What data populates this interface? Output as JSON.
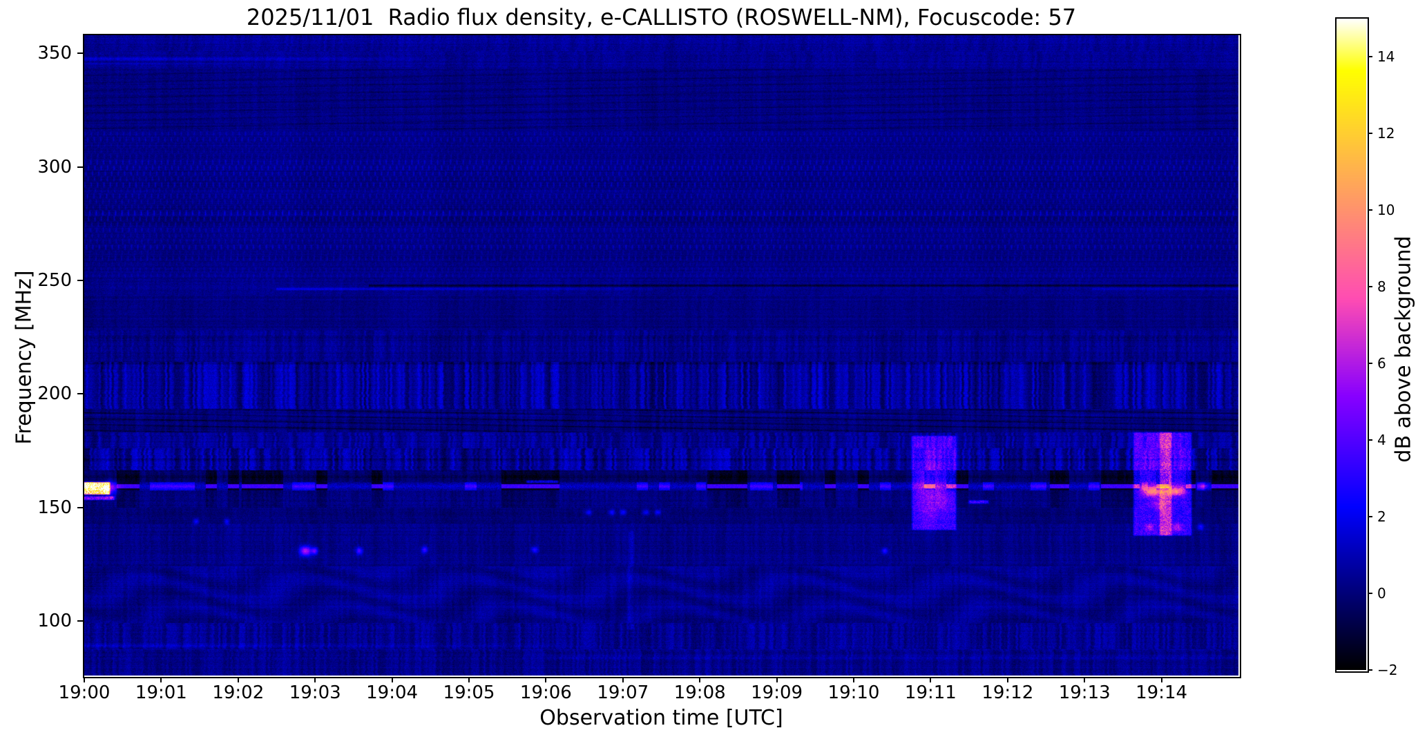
{
  "figure": {
    "title": "2025/11/01  Radio flux density, e-CALLISTO (ROSWELL-NM), Focuscode: 57"
  },
  "chart_data": {
    "type": "heatmap",
    "title": "2025/11/01  Radio flux density, e-CALLISTO (ROSWELL-NM), Focuscode: 57",
    "xlabel": "Observation time [UTC]",
    "ylabel": "Frequency [MHz]",
    "instrument": "e-CALLISTO (ROSWELL-NM)",
    "date": "2025/11/01",
    "focuscode": "57",
    "x_start_utc": "19:00",
    "x_end_utc": "19:15",
    "duration_minutes": 15,
    "x_tick_labels": [
      "19:00",
      "19:01",
      "19:02",
      "19:03",
      "19:04",
      "19:05",
      "19:06",
      "19:07",
      "19:08",
      "19:09",
      "19:10",
      "19:11",
      "19:12",
      "19:13",
      "19:14"
    ],
    "x_tick_minutes": [
      0,
      1,
      2,
      3,
      4,
      5,
      6,
      7,
      8,
      9,
      10,
      11,
      12,
      13,
      14
    ],
    "y_tick_labels": [
      "350",
      "300",
      "250",
      "200",
      "150",
      "100"
    ],
    "y_tick_mhz": [
      350,
      300,
      250,
      200,
      150,
      100
    ],
    "freq_top_mhz": 358,
    "freq_bottom_mhz": 76,
    "grid": false,
    "colorbar": {
      "label": "dB above background",
      "colormap": "gnuplot2",
      "vmin": -2,
      "vmax": 15,
      "tick_values": [
        14,
        12,
        10,
        8,
        6,
        4,
        2,
        0,
        -2
      ],
      "tick_labels": [
        "14",
        "12",
        "10",
        "8",
        "6",
        "4",
        "2",
        "0",
        "−2"
      ]
    },
    "texture_bands": [
      {
        "lo": 351,
        "hi": 358.5,
        "base": 0.5,
        "noise": 0.45,
        "stripe": 0.3,
        "p": 4
      },
      {
        "lo": 343,
        "hi": 351,
        "base": 0.45,
        "noise": 0.45,
        "stripe": 0.25,
        "p": 4
      },
      {
        "lo": 316,
        "hi": 343,
        "base": 0.18,
        "noise": 0.4,
        "stripe": 0.2,
        "p": 3,
        "diag": {
          "slope": -0.02,
          "sp": 11,
          "a": 0.5
        }
      },
      {
        "lo": 251,
        "hi": 316,
        "base": 0.28,
        "noise": 0.35,
        "lattice": {
          "rowH": 8.2,
          "dashP": 9.3,
          "a": 1.3
        }
      },
      {
        "lo": 243.5,
        "hi": 251,
        "base": 0.3,
        "noise": 0.4,
        "stripe": 0.2,
        "p": 3
      },
      {
        "lo": 228,
        "hi": 243.5,
        "base": 0.12,
        "noise": 0.38,
        "stripe": 0.18,
        "p": 3
      },
      {
        "lo": 214,
        "hi": 228,
        "base": 0.38,
        "noise": 0.42,
        "stripe": 0.45,
        "p": 3,
        "lattice": {
          "rowH": 7.5,
          "dashP": 8.5,
          "a": 0.35
        }
      },
      {
        "lo": 193.5,
        "hi": 214,
        "base": 0.5,
        "noise": 0.5,
        "stripe": 1.15,
        "p": 3.1
      },
      {
        "lo": 183,
        "hi": 193.5,
        "base": 0.05,
        "noise": 0.4,
        "stripe": 0.35,
        "p": 3,
        "diag": {
          "slope": 0.016,
          "sp": 8.5,
          "a": 1.05
        }
      },
      {
        "lo": 176,
        "hi": 183,
        "base": 0.45,
        "noise": 0.45,
        "stripe": 0.75,
        "p": 3
      },
      {
        "lo": 166.5,
        "hi": 176,
        "base": 0.55,
        "noise": 0.5,
        "stripe": 1.15,
        "p": 3
      },
      {
        "lo": 161.1,
        "hi": 166.5,
        "base": -0.25,
        "noise": 0.4,
        "stripe": 0.35,
        "p": 3,
        "carrier_link": "dark"
      },
      {
        "lo": 157.4,
        "hi": 161.1,
        "base": 0.3,
        "noise": 0.5,
        "carrier": true
      },
      {
        "lo": 150,
        "hi": 157.4,
        "base": 0.15,
        "noise": 0.45,
        "stripe": 0.3,
        "p": 3,
        "carrier_link": "dim"
      },
      {
        "lo": 143,
        "hi": 150,
        "base": -0.05,
        "noise": 0.4,
        "stripe": 0.22,
        "p": 3
      },
      {
        "lo": 124,
        "hi": 143,
        "base": 0.2,
        "noise": 0.42,
        "stripe": 0.28,
        "p": 3
      },
      {
        "lo": 99,
        "hi": 124,
        "base": 0.32,
        "noise": 0.42,
        "stripe": 0.3,
        "p": 3,
        "wavy": {
          "amp": 0.33,
          "per": 235,
          "fper": 12
        }
      },
      {
        "lo": 87.5,
        "hi": 99,
        "base": 0.42,
        "noise": 0.48,
        "stripe": 0.65,
        "p": 3
      },
      {
        "lo": 75,
        "hi": 87.5,
        "base": 0.28,
        "noise": 0.45,
        "stripe": 0.5,
        "p": 3
      }
    ],
    "horizontal_lines": [
      {
        "f": 347.6,
        "a": 1.3,
        "t0": 0,
        "t1": 4.4,
        "fade": 1,
        "hw": 1.2
      },
      {
        "f": 345.4,
        "a": 0.6,
        "t0": 0,
        "t1": 2.2,
        "fade": 1,
        "hw": 0.8
      },
      {
        "f": 246.2,
        "a": 1.7,
        "t0": 2.5,
        "t1": 7.4,
        "fade": 1,
        "hw": 0.9
      },
      {
        "f": 246.2,
        "a": 0.8,
        "t0": 13.1,
        "t1": 15,
        "fade": 0,
        "hw": 0.8
      },
      {
        "f": 247.7,
        "a": -1.6,
        "t0": 3.7,
        "t1": 15,
        "fade": 0,
        "hw": 0.8
      },
      {
        "f": 213.5,
        "a": -0.8,
        "t0": 0,
        "t1": 15,
        "fade": 0,
        "hw": 0.8
      },
      {
        "f": 190.6,
        "a": 0.5,
        "t0": 0,
        "t1": 15,
        "fade": 0,
        "hw": 0.6
      },
      {
        "f": 171.2,
        "a": -0.7,
        "t0": 0,
        "t1": 15,
        "fade": 0,
        "hw": 0.7
      },
      {
        "f": 163.6,
        "a": -0.5,
        "t0": 0,
        "t1": 15,
        "fade": 0,
        "hw": 0.8
      },
      {
        "f": 89.2,
        "a": 0.9,
        "t0": 0,
        "t1": 6.3,
        "fade": 1,
        "hw": 1.2
      },
      {
        "f": 84.0,
        "a": 0.45,
        "t0": 6,
        "t1": 15,
        "fade": 0,
        "hw": 1.3
      }
    ],
    "carrier": {
      "center_mhz": 159.3,
      "halfwidth_mhz": 1.9,
      "black_intervals_min": [
        [
          0.42,
          0.72
        ],
        [
          2.05,
          2.32
        ],
        [
          5.42,
          6.08
        ],
        [
          8.1,
          8.62
        ],
        [
          9.0,
          9.3
        ],
        [
          12.55,
          12.8
        ],
        [
          13.3,
          13.72
        ],
        [
          14.02,
          14.09
        ],
        [
          14.32,
          14.44
        ]
      ],
      "bright_intervals_min": [
        [
          0.85,
          1.3
        ],
        [
          2.7,
          3.0
        ],
        [
          4.95,
          5.1
        ],
        [
          7.95,
          8.08
        ],
        [
          8.65,
          8.95
        ],
        [
          11.68,
          11.82
        ],
        [
          12.3,
          12.5
        ],
        [
          13.05,
          13.2
        ],
        [
          13.74,
          13.82
        ],
        [
          14.46,
          14.56
        ]
      ]
    },
    "features": [
      {
        "t": 0.14,
        "f": 158.6,
        "dt": 0.2,
        "df": 3.0,
        "a": 13.5,
        "s": "box",
        "note": "bright yellow burst near 19:00 at ~158 MHz"
      },
      {
        "t": 0.14,
        "f": 154.3,
        "dt": 0.26,
        "df": 1.1,
        "a": 4.8,
        "s": "box"
      },
      {
        "t": 0.34,
        "f": 158.6,
        "dt": 0.06,
        "df": 2.2,
        "a": 4.5,
        "s": "gauss"
      },
      {
        "t": 11.04,
        "f": 161.0,
        "dt": 0.3,
        "df": 21,
        "a": 3.1,
        "s": "box",
        "note": "violet RFI patch at 19:11, 150-172 MHz"
      },
      {
        "t": 10.97,
        "f": 156.0,
        "dt": 0.1,
        "df": 9,
        "a": 2.4,
        "s": "gauss"
      },
      {
        "t": 11.2,
        "f": 153.0,
        "dt": 0.1,
        "df": 4,
        "a": 1.5,
        "s": "gauss"
      },
      {
        "t": 13.88,
        "f": 160.5,
        "dt": 0.26,
        "df": 23,
        "a": 3.4,
        "s": "box",
        "note": "violet RFI patch pair at 19:14, 148-172 MHz"
      },
      {
        "t": 14.18,
        "f": 160.5,
        "dt": 0.22,
        "df": 23,
        "a": 3.2,
        "s": "box"
      },
      {
        "t": 13.89,
        "f": 157.2,
        "dt": 0.1,
        "df": 1.4,
        "a": 6.5,
        "s": "gauss"
      },
      {
        "t": 14.19,
        "f": 157.2,
        "dt": 0.08,
        "df": 1.3,
        "a": 6.0,
        "s": "gauss"
      },
      {
        "t": 13.97,
        "f": 152.0,
        "dt": 0.05,
        "df": 2.0,
        "a": 2.5,
        "s": "gauss"
      },
      {
        "t": 13.85,
        "f": 141.5,
        "dt": 0.03,
        "df": 1.0,
        "a": 2.5,
        "s": "gauss"
      },
      {
        "t": 14.2,
        "f": 141.5,
        "dt": 0.04,
        "df": 1.2,
        "a": 3.0,
        "s": "gauss"
      },
      {
        "t": 14.5,
        "f": 141.5,
        "dt": 0.03,
        "df": 1.0,
        "a": 2.6,
        "s": "gauss"
      },
      {
        "t": 11.62,
        "f": 152.6,
        "dt": 0.14,
        "df": 1.0,
        "a": 3.4,
        "s": "box"
      },
      {
        "t": 5.95,
        "f": 161.5,
        "dt": 0.22,
        "df": 0.9,
        "a": 2.8,
        "s": "box"
      },
      {
        "t": 14.55,
        "f": 159.5,
        "dt": 0.05,
        "df": 1.0,
        "a": 3.0,
        "s": "gauss"
      },
      {
        "t": 2.87,
        "f": 131.0,
        "dt": 0.05,
        "df": 1.5,
        "a": 6.2,
        "s": "gauss",
        "note": "pink dot at 19:03, 131 MHz"
      },
      {
        "t": 2.99,
        "f": 131.0,
        "dt": 0.03,
        "df": 1.1,
        "a": 4.2,
        "s": "gauss"
      },
      {
        "t": 3.57,
        "f": 131.0,
        "dt": 0.03,
        "df": 1.1,
        "a": 3.8,
        "s": "gauss"
      },
      {
        "t": 4.42,
        "f": 131.5,
        "dt": 0.03,
        "df": 1.1,
        "a": 3.2,
        "s": "gauss"
      },
      {
        "t": 5.85,
        "f": 131.5,
        "dt": 0.03,
        "df": 1.0,
        "a": 3.0,
        "s": "gauss"
      },
      {
        "t": 10.4,
        "f": 131.0,
        "dt": 0.03,
        "df": 1.0,
        "a": 2.8,
        "s": "gauss"
      },
      {
        "t": 1.45,
        "f": 144.0,
        "dt": 0.025,
        "df": 0.9,
        "a": 2.6,
        "s": "gauss"
      },
      {
        "t": 1.85,
        "f": 144.0,
        "dt": 0.025,
        "df": 0.9,
        "a": 2.4,
        "s": "gauss"
      },
      {
        "t": 6.55,
        "f": 148.0,
        "dt": 0.03,
        "df": 0.9,
        "a": 2.6,
        "s": "gauss"
      },
      {
        "t": 6.85,
        "f": 148.0,
        "dt": 0.03,
        "df": 0.9,
        "a": 2.6,
        "s": "gauss"
      },
      {
        "t": 7.0,
        "f": 148.0,
        "dt": 0.03,
        "df": 0.9,
        "a": 2.6,
        "s": "gauss"
      },
      {
        "t": 7.3,
        "f": 148.0,
        "dt": 0.03,
        "df": 0.9,
        "a": 2.6,
        "s": "gauss"
      },
      {
        "t": 7.45,
        "f": 148.0,
        "dt": 0.03,
        "df": 0.9,
        "a": 2.6,
        "s": "gauss"
      },
      {
        "t": 7.1,
        "f": 118.0,
        "dt": 0.05,
        "df": 22,
        "a": 0.6,
        "s": "box"
      }
    ]
  }
}
